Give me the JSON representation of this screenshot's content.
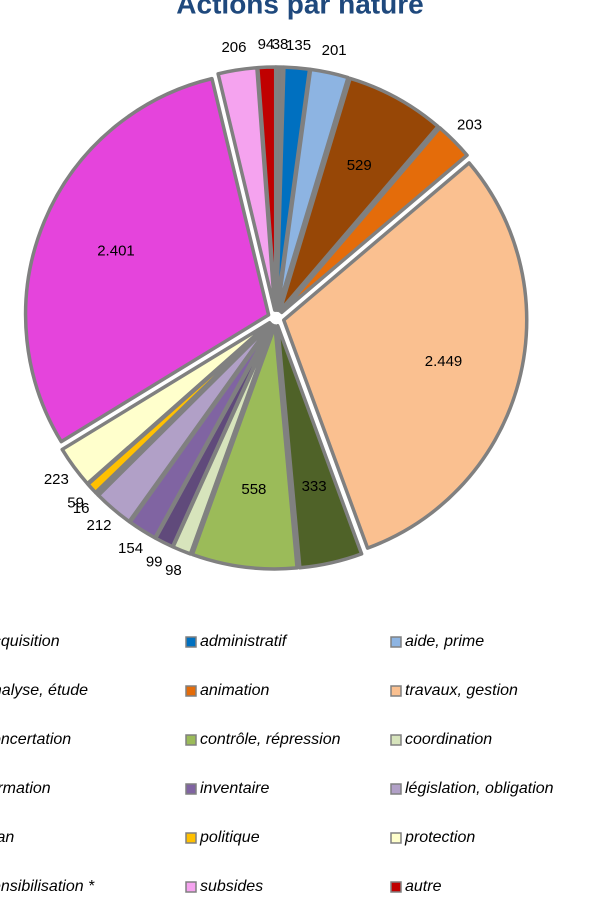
{
  "chart_data": {
    "type": "pie",
    "title": "Actions par nature",
    "categories": [
      "acquisition",
      "administratif",
      "aide, prime",
      "analyse, étude",
      "animation",
      "travaux, gestion",
      "concertation",
      "contrôle, répression",
      "coordination",
      "formation",
      "inventaire",
      "législation, obligation",
      "plan",
      "politique",
      "protection",
      "sensibilisation *",
      "subsides",
      "autre"
    ],
    "values": [
      38,
      135,
      201,
      529,
      203,
      2449,
      333,
      558,
      98,
      99,
      154,
      212,
      16,
      59,
      223,
      2401,
      206,
      94
    ],
    "value_labels": [
      "38",
      "135",
      "201",
      "529",
      "203",
      "2.449",
      "333",
      "558",
      "98",
      "99",
      "154",
      "212",
      "16",
      "59",
      "223",
      "2.401",
      "206",
      "94"
    ],
    "colors": [
      "#7f7f7f",
      "#0070c0",
      "#8db4e2",
      "#974706",
      "#e46c0a",
      "#fac090",
      "#4f6228",
      "#9bbb59",
      "#d7e4bc",
      "#604a7b",
      "#8064a2",
      "#b1a0c7",
      "#1f497d",
      "#ffc000",
      "#ffffcc",
      "#e544dc",
      "#f5a3ef",
      "#c00000"
    ],
    "legend": "bottom"
  }
}
